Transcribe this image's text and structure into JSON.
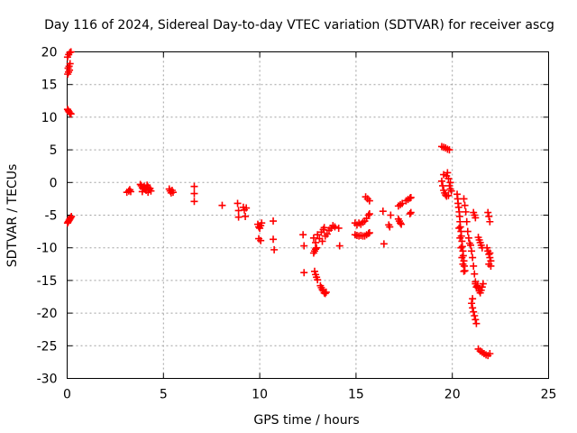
{
  "chart_data": {
    "type": "scatter",
    "title": "Day 116 of 2024, Sidereal Day-to-day VTEC variation (SDTVAR) for receiver ascg",
    "xlabel": "GPS time / hours",
    "ylabel": "SDTVAR / TECUs",
    "xlim": [
      0,
      25
    ],
    "ylim": [
      -30,
      20
    ],
    "xticks": [
      0,
      5,
      10,
      15,
      20,
      25
    ],
    "yticks": [
      -30,
      -25,
      -20,
      -15,
      -10,
      -5,
      0,
      5,
      10,
      15,
      20
    ],
    "xtick_labels": [
      "0",
      "5",
      "10",
      "15",
      "20",
      "25"
    ],
    "ytick_labels": [
      "-30",
      "-25",
      "-20",
      "-15",
      "-10",
      "-5",
      "0",
      "5",
      "10",
      "15",
      "20"
    ],
    "grid": true,
    "marker": "+",
    "color": "#ff0000",
    "series": [
      {
        "name": "SDTVAR",
        "points": [
          [
            0.02,
            19.2
          ],
          [
            0.08,
            19.6
          ],
          [
            0.14,
            19.9
          ],
          [
            0.2,
            20.0
          ],
          [
            0.05,
            17.5
          ],
          [
            0.1,
            17.8
          ],
          [
            0.15,
            18.2
          ],
          [
            0.03,
            16.6
          ],
          [
            0.07,
            16.9
          ],
          [
            0.12,
            17.2
          ],
          [
            0.02,
            11.2
          ],
          [
            0.06,
            11.0
          ],
          [
            0.1,
            10.8
          ],
          [
            0.15,
            10.6
          ],
          [
            0.2,
            10.5
          ],
          [
            0.02,
            -6.2
          ],
          [
            0.06,
            -6.0
          ],
          [
            0.1,
            -5.8
          ],
          [
            0.14,
            -5.6
          ],
          [
            0.18,
            -5.4
          ],
          [
            0.22,
            -5.2
          ],
          [
            3.1,
            -1.5
          ],
          [
            3.2,
            -1.3
          ],
          [
            3.3,
            -1.4
          ],
          [
            3.25,
            -1.1
          ],
          [
            3.8,
            -0.3
          ],
          [
            3.85,
            -0.5
          ],
          [
            3.9,
            -0.8
          ],
          [
            3.95,
            -1.0
          ],
          [
            4.0,
            -0.6
          ],
          [
            4.05,
            -0.9
          ],
          [
            4.1,
            -1.2
          ],
          [
            4.15,
            -0.4
          ],
          [
            4.2,
            -0.7
          ],
          [
            4.25,
            -1.1
          ],
          [
            4.3,
            -0.9
          ],
          [
            4.35,
            -1.3
          ],
          [
            3.9,
            -1.4
          ],
          [
            4.2,
            -1.5
          ],
          [
            5.3,
            -1.0
          ],
          [
            5.35,
            -1.3
          ],
          [
            5.4,
            -1.6
          ],
          [
            5.45,
            -1.2
          ],
          [
            5.5,
            -1.5
          ],
          [
            6.6,
            -0.6
          ],
          [
            6.6,
            -1.7
          ],
          [
            6.6,
            -2.9
          ],
          [
            8.05,
            -3.5
          ],
          [
            8.85,
            -3.2
          ],
          [
            8.9,
            -4.3
          ],
          [
            8.9,
            -5.3
          ],
          [
            9.15,
            -3.8
          ],
          [
            9.2,
            -4.2
          ],
          [
            9.25,
            -5.2
          ],
          [
            9.3,
            -3.9
          ],
          [
            9.9,
            -6.4
          ],
          [
            9.95,
            -6.8
          ],
          [
            10.0,
            -7.0
          ],
          [
            10.05,
            -6.6
          ],
          [
            10.1,
            -6.2
          ],
          [
            9.95,
            -8.6
          ],
          [
            10.05,
            -8.9
          ],
          [
            10.7,
            -5.9
          ],
          [
            10.7,
            -8.7
          ],
          [
            10.75,
            -10.3
          ],
          [
            12.25,
            -8.0
          ],
          [
            12.3,
            -9.7
          ],
          [
            12.3,
            -13.8
          ],
          [
            12.8,
            -10.8
          ],
          [
            12.85,
            -10.5
          ],
          [
            12.9,
            -10.2
          ],
          [
            12.95,
            -10.0
          ],
          [
            12.85,
            -13.6
          ],
          [
            12.9,
            -14.1
          ],
          [
            12.95,
            -14.5
          ],
          [
            13.0,
            -14.9
          ],
          [
            13.15,
            -15.8
          ],
          [
            13.2,
            -16.1
          ],
          [
            13.25,
            -16.4
          ],
          [
            13.3,
            -16.6
          ],
          [
            13.35,
            -16.9
          ],
          [
            13.4,
            -17.0
          ],
          [
            13.45,
            -16.8
          ],
          [
            12.8,
            -8.5
          ],
          [
            12.9,
            -9.2
          ],
          [
            13.0,
            -8.0
          ],
          [
            13.1,
            -8.6
          ],
          [
            13.2,
            -7.6
          ],
          [
            13.25,
            -9.0
          ],
          [
            13.3,
            -7.2
          ],
          [
            13.35,
            -6.9
          ],
          [
            13.4,
            -8.2
          ],
          [
            13.5,
            -7.9
          ],
          [
            13.6,
            -7.3
          ],
          [
            13.7,
            -7.0
          ],
          [
            13.8,
            -6.6
          ],
          [
            13.9,
            -6.8
          ],
          [
            14.1,
            -7.0
          ],
          [
            14.15,
            -9.7
          ],
          [
            14.95,
            -6.2
          ],
          [
            15.05,
            -6.5
          ],
          [
            15.15,
            -6.2
          ],
          [
            15.25,
            -6.4
          ],
          [
            15.35,
            -6.1
          ],
          [
            15.45,
            -5.9
          ],
          [
            15.55,
            -5.5
          ],
          [
            15.65,
            -5.0
          ],
          [
            15.7,
            -4.8
          ],
          [
            14.95,
            -8.0
          ],
          [
            15.05,
            -8.1
          ],
          [
            15.15,
            -8.2
          ],
          [
            15.25,
            -8.1
          ],
          [
            15.35,
            -8.2
          ],
          [
            15.45,
            -8.2
          ],
          [
            15.55,
            -8.0
          ],
          [
            15.65,
            -7.8
          ],
          [
            15.7,
            -7.7
          ],
          [
            15.5,
            -2.2
          ],
          [
            15.6,
            -2.5
          ],
          [
            15.7,
            -2.8
          ],
          [
            16.4,
            -4.4
          ],
          [
            16.45,
            -9.4
          ],
          [
            16.7,
            -6.5
          ],
          [
            16.75,
            -6.8
          ],
          [
            16.8,
            -5.0
          ],
          [
            17.2,
            -5.6
          ],
          [
            17.25,
            -5.9
          ],
          [
            17.3,
            -6.2
          ],
          [
            17.35,
            -6.4
          ],
          [
            17.2,
            -3.6
          ],
          [
            17.3,
            -3.4
          ],
          [
            17.4,
            -3.2
          ],
          [
            17.6,
            -2.8
          ],
          [
            17.7,
            -2.6
          ],
          [
            17.8,
            -2.4
          ],
          [
            17.85,
            -2.3
          ],
          [
            17.85,
            -4.6
          ],
          [
            17.8,
            -4.8
          ],
          [
            19.45,
            5.5
          ],
          [
            19.55,
            5.4
          ],
          [
            19.65,
            5.3
          ],
          [
            19.75,
            5.1
          ],
          [
            19.85,
            5.0
          ],
          [
            19.45,
            0.2
          ],
          [
            19.5,
            -0.5
          ],
          [
            19.55,
            -1.2
          ],
          [
            19.6,
            -1.6
          ],
          [
            19.65,
            -1.9
          ],
          [
            19.7,
            -2.1
          ],
          [
            19.7,
            1.0
          ],
          [
            19.75,
            1.5
          ],
          [
            19.8,
            0.6
          ],
          [
            19.85,
            -0.5
          ],
          [
            19.9,
            -1.0
          ],
          [
            19.95,
            -1.3
          ],
          [
            19.9,
            0.0
          ],
          [
            19.55,
            1.2
          ],
          [
            19.8,
            -2.0
          ],
          [
            20.25,
            -1.8
          ],
          [
            20.28,
            -2.5
          ],
          [
            20.3,
            -3.2
          ],
          [
            20.33,
            -3.8
          ],
          [
            20.36,
            -4.5
          ],
          [
            20.38,
            -5.2
          ],
          [
            20.4,
            -6.0
          ],
          [
            20.42,
            -6.8
          ],
          [
            20.45,
            -7.5
          ],
          [
            20.47,
            -8.2
          ],
          [
            20.5,
            -9.0
          ],
          [
            20.52,
            -9.8
          ],
          [
            20.55,
            -10.5
          ],
          [
            20.57,
            -11.2
          ],
          [
            20.6,
            -12.0
          ],
          [
            20.62,
            -12.8
          ],
          [
            20.65,
            -13.5
          ],
          [
            20.35,
            -7.0
          ],
          [
            20.4,
            -8.5
          ],
          [
            20.45,
            -10.0
          ],
          [
            20.5,
            -11.5
          ],
          [
            20.55,
            -12.5
          ],
          [
            20.6,
            -13.6
          ],
          [
            20.6,
            -2.5
          ],
          [
            20.65,
            -3.5
          ],
          [
            20.7,
            -4.5
          ],
          [
            20.75,
            -6.0
          ],
          [
            20.8,
            -7.5
          ],
          [
            20.85,
            -8.5
          ],
          [
            20.9,
            -9.3
          ],
          [
            20.95,
            -9.6
          ],
          [
            21.0,
            -10.5
          ],
          [
            21.05,
            -11.5
          ],
          [
            21.1,
            -12.8
          ],
          [
            21.15,
            -14.0
          ],
          [
            21.2,
            -15.2
          ],
          [
            21.25,
            -16.0
          ],
          [
            21.0,
            -18.5
          ],
          [
            21.05,
            -19.2
          ],
          [
            21.1,
            -19.8
          ],
          [
            21.15,
            -20.4
          ],
          [
            21.2,
            -21.0
          ],
          [
            21.25,
            -21.6
          ],
          [
            21.05,
            -17.8
          ],
          [
            21.2,
            -15.5
          ],
          [
            21.1,
            -4.6
          ],
          [
            21.15,
            -5.0
          ],
          [
            21.2,
            -5.4
          ],
          [
            21.35,
            -8.4
          ],
          [
            21.4,
            -8.8
          ],
          [
            21.45,
            -9.2
          ],
          [
            21.5,
            -9.6
          ],
          [
            21.55,
            -10.0
          ],
          [
            21.3,
            -15.8
          ],
          [
            21.35,
            -16.2
          ],
          [
            21.4,
            -16.6
          ],
          [
            21.45,
            -16.9
          ],
          [
            21.5,
            -16.5
          ],
          [
            21.55,
            -16.0
          ],
          [
            21.6,
            -15.5
          ],
          [
            21.35,
            -25.5
          ],
          [
            21.45,
            -25.8
          ],
          [
            21.55,
            -26.0
          ],
          [
            21.65,
            -26.2
          ],
          [
            21.75,
            -26.4
          ],
          [
            21.85,
            -26.5
          ],
          [
            21.95,
            -26.2
          ],
          [
            21.8,
            -10.0
          ],
          [
            21.85,
            -10.5
          ],
          [
            21.9,
            -11.0
          ],
          [
            21.95,
            -11.5
          ],
          [
            22.0,
            -12.0
          ],
          [
            22.0,
            -12.8
          ],
          [
            21.9,
            -12.5
          ],
          [
            21.95,
            -10.8
          ],
          [
            21.85,
            -4.6
          ],
          [
            21.9,
            -5.2
          ],
          [
            21.95,
            -6.0
          ]
        ]
      }
    ]
  }
}
